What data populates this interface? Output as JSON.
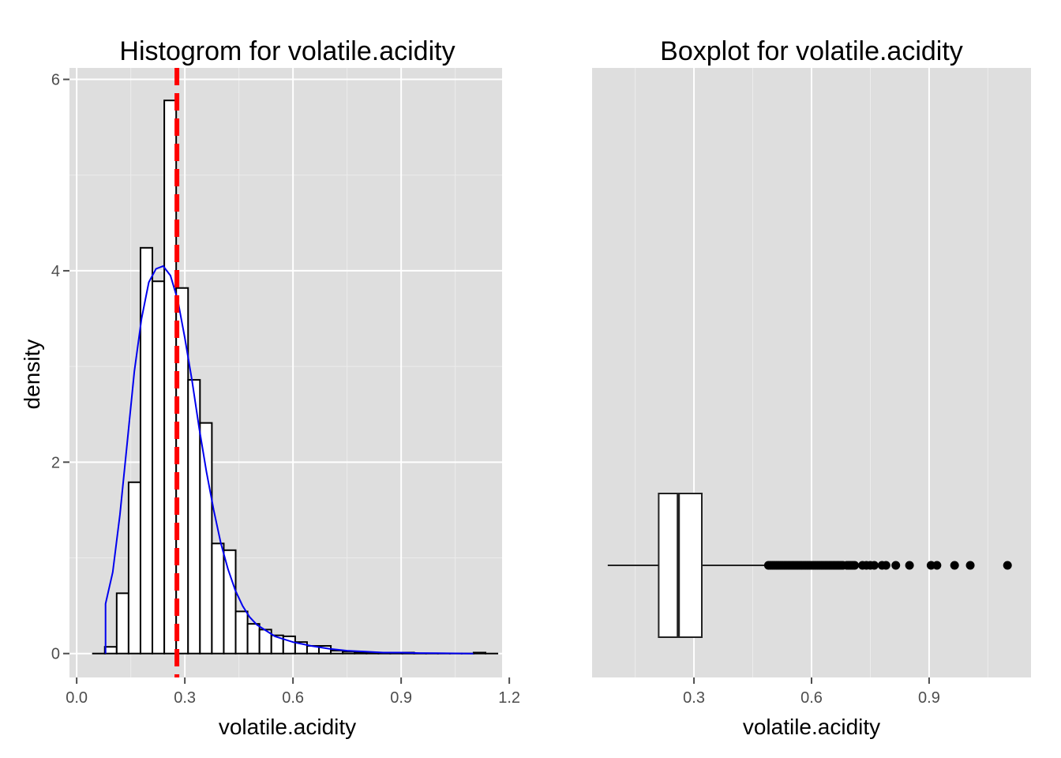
{
  "colors": {
    "panel_bg": "#dedede",
    "grid_major": "#ffffff",
    "grid_minor": "#ececec",
    "bar_fill": "#ffffff",
    "bar_stroke": "#000000",
    "density_line": "#0000ee",
    "mean_line": "#ff0000",
    "box_stroke": "#222222",
    "outlier": "#000000"
  },
  "chart_data": [
    {
      "type": "histogram",
      "title": "Histogrom for volatile.acidity",
      "xlabel": "volatile.acidity",
      "ylabel": "density",
      "xlim": [
        -0.02,
        1.18
      ],
      "ylim": [
        -0.25,
        6.12
      ],
      "x_ticks": [
        0.0,
        0.3,
        0.6,
        0.9,
        1.2
      ],
      "x_tick_labels": [
        "0.0",
        "0.3",
        "0.6",
        "0.9",
        "1.2"
      ],
      "y_ticks": [
        0,
        2,
        4,
        6
      ],
      "y_tick_labels": [
        "0",
        "2",
        "4",
        "6"
      ],
      "grid": true,
      "bin_width": 0.033,
      "bins": [
        {
          "x0": 0.045,
          "x1": 0.078,
          "density": 0.0
        },
        {
          "x0": 0.078,
          "x1": 0.111,
          "density": 0.07
        },
        {
          "x0": 0.111,
          "x1": 0.144,
          "density": 0.63
        },
        {
          "x0": 0.144,
          "x1": 0.177,
          "density": 1.79
        },
        {
          "x0": 0.177,
          "x1": 0.21,
          "density": 4.24
        },
        {
          "x0": 0.21,
          "x1": 0.243,
          "density": 3.89
        },
        {
          "x0": 0.243,
          "x1": 0.276,
          "density": 5.78
        },
        {
          "x0": 0.276,
          "x1": 0.309,
          "density": 3.82
        },
        {
          "x0": 0.309,
          "x1": 0.342,
          "density": 2.86
        },
        {
          "x0": 0.342,
          "x1": 0.375,
          "density": 2.41
        },
        {
          "x0": 0.375,
          "x1": 0.408,
          "density": 1.15
        },
        {
          "x0": 0.408,
          "x1": 0.441,
          "density": 1.08
        },
        {
          "x0": 0.441,
          "x1": 0.474,
          "density": 0.44
        },
        {
          "x0": 0.474,
          "x1": 0.507,
          "density": 0.31
        },
        {
          "x0": 0.507,
          "x1": 0.54,
          "density": 0.25
        },
        {
          "x0": 0.54,
          "x1": 0.573,
          "density": 0.19
        },
        {
          "x0": 0.573,
          "x1": 0.606,
          "density": 0.18
        },
        {
          "x0": 0.606,
          "x1": 0.639,
          "density": 0.12
        },
        {
          "x0": 0.639,
          "x1": 0.672,
          "density": 0.08
        },
        {
          "x0": 0.672,
          "x1": 0.705,
          "density": 0.08
        },
        {
          "x0": 0.705,
          "x1": 0.738,
          "density": 0.03
        },
        {
          "x0": 0.738,
          "x1": 0.771,
          "density": 0.02
        },
        {
          "x0": 0.771,
          "x1": 0.804,
          "density": 0.01
        },
        {
          "x0": 0.804,
          "x1": 0.837,
          "density": 0.01
        },
        {
          "x0": 0.837,
          "x1": 0.87,
          "density": 0.01
        },
        {
          "x0": 0.87,
          "x1": 0.903,
          "density": 0.01
        },
        {
          "x0": 0.903,
          "x1": 0.936,
          "density": 0.01
        },
        {
          "x0": 0.936,
          "x1": 0.969,
          "density": 0.0
        },
        {
          "x0": 0.969,
          "x1": 1.002,
          "density": 0.0
        },
        {
          "x0": 1.002,
          "x1": 1.035,
          "density": 0.0
        },
        {
          "x0": 1.035,
          "x1": 1.068,
          "density": 0.0
        },
        {
          "x0": 1.068,
          "x1": 1.101,
          "density": 0.0
        },
        {
          "x0": 1.101,
          "x1": 1.134,
          "density": 0.01
        },
        {
          "x0": 1.134,
          "x1": 1.167,
          "density": 0.0
        }
      ],
      "density_curve": {
        "x": [
          0.08,
          0.1,
          0.12,
          0.14,
          0.16,
          0.18,
          0.2,
          0.22,
          0.24,
          0.26,
          0.28,
          0.3,
          0.32,
          0.34,
          0.36,
          0.38,
          0.4,
          0.42,
          0.44,
          0.46,
          0.48,
          0.5,
          0.55,
          0.6,
          0.65,
          0.7,
          0.75,
          0.8,
          0.85,
          0.9,
          0.95,
          1.0,
          1.05,
          1.1
        ],
        "y": [
          0.52,
          0.85,
          1.45,
          2.2,
          2.95,
          3.5,
          3.88,
          4.02,
          4.05,
          3.95,
          3.7,
          3.3,
          2.85,
          2.35,
          1.9,
          1.5,
          1.15,
          0.88,
          0.66,
          0.5,
          0.38,
          0.3,
          0.18,
          0.12,
          0.08,
          0.05,
          0.03,
          0.02,
          0.01,
          0.01,
          0.005,
          0.003,
          0.002,
          0.0
        ]
      },
      "mean_line_x": 0.278
    },
    {
      "type": "boxplot",
      "title": "Boxplot for volatile.acidity",
      "xlabel": "volatile.acidity",
      "xlim": [
        0.04,
        1.16
      ],
      "x_ticks": [
        0.3,
        0.6,
        0.9
      ],
      "x_tick_labels": [
        "0.3",
        "0.6",
        "0.9"
      ],
      "grid": true,
      "box": {
        "whisker_low": 0.08,
        "q1": 0.21,
        "median": 0.26,
        "q3": 0.32,
        "whisker_high": 0.485
      },
      "outliers": [
        0.49,
        0.495,
        0.5,
        0.505,
        0.51,
        0.515,
        0.52,
        0.525,
        0.53,
        0.535,
        0.54,
        0.545,
        0.55,
        0.555,
        0.56,
        0.565,
        0.57,
        0.575,
        0.58,
        0.585,
        0.59,
        0.595,
        0.6,
        0.605,
        0.61,
        0.615,
        0.62,
        0.625,
        0.63,
        0.635,
        0.64,
        0.645,
        0.65,
        0.655,
        0.66,
        0.665,
        0.67,
        0.675,
        0.68,
        0.69,
        0.695,
        0.7,
        0.705,
        0.71,
        0.73,
        0.74,
        0.75,
        0.76,
        0.78,
        0.79,
        0.815,
        0.85,
        0.905,
        0.92,
        0.965,
        1.005,
        1.1
      ]
    }
  ]
}
